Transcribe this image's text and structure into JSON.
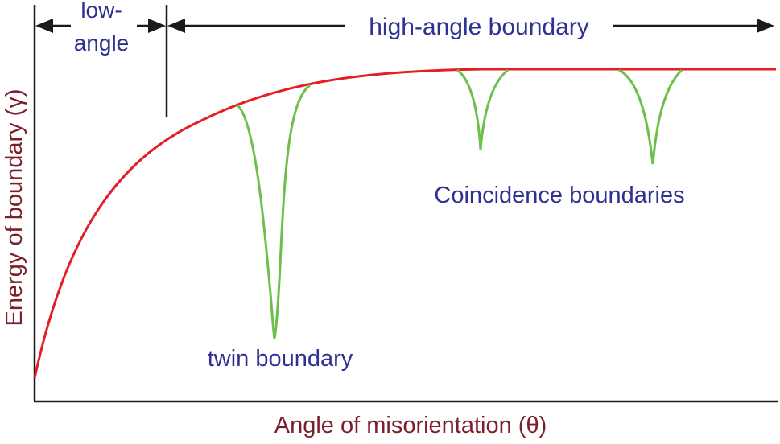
{
  "axes": {
    "y_label": "Energy of boundary (γ)",
    "x_label": "Angle of misorientation (θ)"
  },
  "regions": {
    "low_angle_line1": "low-",
    "low_angle_line2": "angle",
    "high_angle": "high-angle boundary"
  },
  "annotations": {
    "twin": "twin boundary",
    "coincidence": "Coincidence boundaries"
  },
  "colors": {
    "energy_curve": "#e41e26",
    "cusps": "#6cc04a",
    "label_text": "#2e3192",
    "axis_text": "#7a1f2b",
    "axis_lines": "#1a1a1a"
  }
}
